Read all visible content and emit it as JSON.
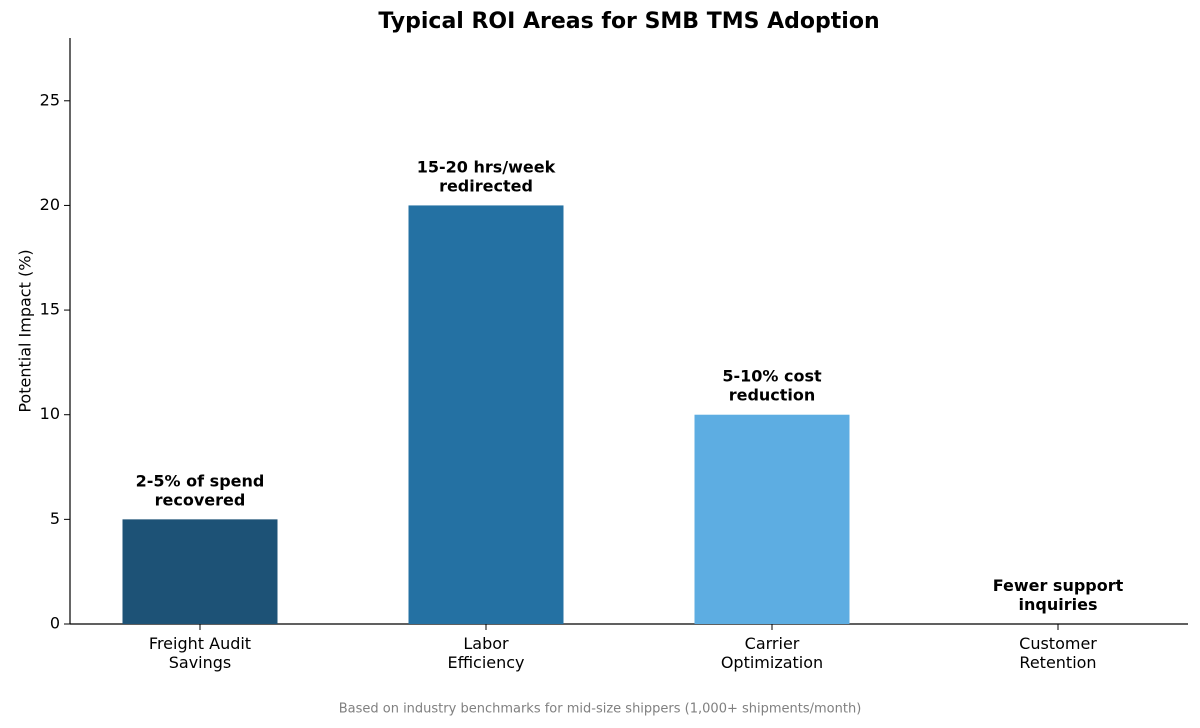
{
  "chart_data": {
    "type": "bar",
    "title": "Typical ROI Areas for SMB TMS Adoption",
    "y_label": "Potential Impact (%)",
    "footnote": "Based on industry benchmarks for mid-size shippers (1,000+ shipments/month)",
    "categories": [
      "Freight Audit\nSavings",
      "Labor\nEfficiency",
      "Carrier\nOptimization",
      "Customer\nRetention"
    ],
    "values": [
      5,
      20,
      10,
      0
    ],
    "annotations": [
      "2-5% of spend\nrecovered",
      "15-20 hrs/week\nredirected",
      "5-10% cost\nreduction",
      "Fewer support\ninquiries"
    ],
    "colors": [
      "#1d5276",
      "#2471a3",
      "#5dade2",
      "#aed6f1"
    ],
    "ylim": [
      0,
      28
    ],
    "yticks": [
      0,
      5,
      10,
      15,
      20,
      25
    ],
    "grid": false
  }
}
